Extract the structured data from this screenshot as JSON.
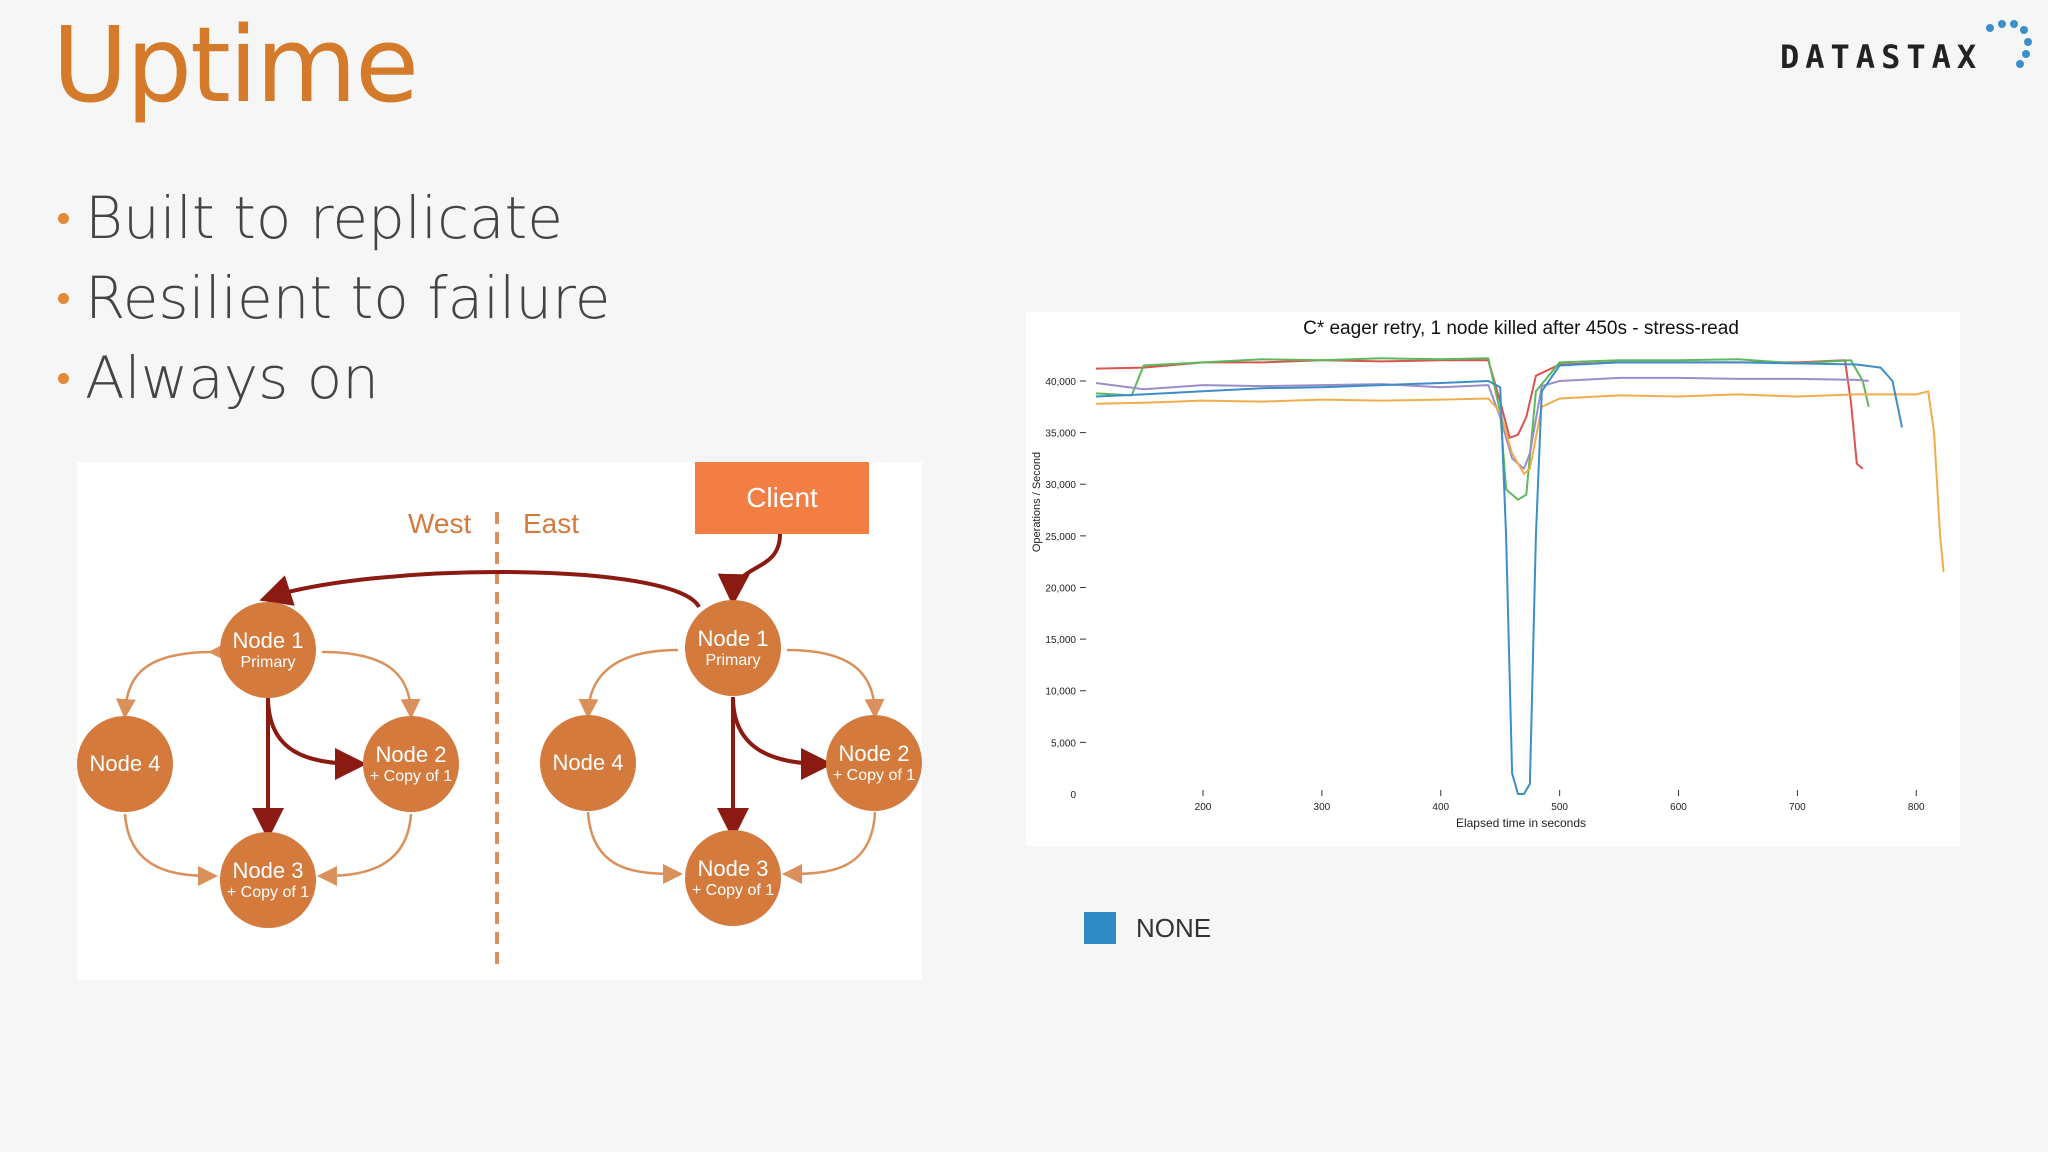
{
  "slide": {
    "title": "Uptime",
    "logo_text": "DATASTAX",
    "bullets": [
      "Built to replicate",
      "Resilient to failure",
      "Always on"
    ]
  },
  "diagram": {
    "client_label": "Client",
    "west_label": "West",
    "east_label": "East",
    "west_nodes": [
      {
        "name": "Node 1",
        "sub": "Primary"
      },
      {
        "name": "Node 2",
        "sub": "+ Copy of 1"
      },
      {
        "name": "Node 3",
        "sub": "+ Copy of 1"
      },
      {
        "name": "Node 4",
        "sub": ""
      }
    ],
    "east_nodes": [
      {
        "name": "Node 1",
        "sub": "Primary"
      },
      {
        "name": "Node 2",
        "sub": "+ Copy of 1"
      },
      {
        "name": "Node 3",
        "sub": "+ Copy of 1"
      },
      {
        "name": "Node 4",
        "sub": ""
      }
    ],
    "colors": {
      "node": "#d47a3d",
      "client": "#f27e43",
      "primary_arrow": "#8b1a12",
      "secondary_arrow": "#d9905a"
    }
  },
  "chart_data": {
    "type": "line",
    "title": "C* eager retry, 1 node killed after 450s - stress-read",
    "xlabel": "Elapsed time in seconds",
    "ylabel": "Operations / Second",
    "xlim": [
      110,
      825
    ],
    "ylim": [
      0,
      43000
    ],
    "xticks": [
      200,
      300,
      400,
      500,
      600,
      700,
      800
    ],
    "yticks": [
      0,
      5000,
      10000,
      15000,
      20000,
      25000,
      30000,
      35000,
      40000
    ],
    "ytick_labels": [
      "0",
      "5,000",
      "10,000",
      "15,000",
      "20,000",
      "25,000",
      "30,000",
      "35,000",
      "40,000"
    ],
    "series": [
      {
        "name": "NONE",
        "color": "#3d8ec8",
        "points": [
          [
            110,
            38500
          ],
          [
            150,
            38700
          ],
          [
            200,
            39000
          ],
          [
            250,
            39300
          ],
          [
            300,
            39400
          ],
          [
            350,
            39600
          ],
          [
            400,
            39800
          ],
          [
            440,
            40000
          ],
          [
            450,
            39400
          ],
          [
            455,
            25000
          ],
          [
            460,
            2000
          ],
          [
            465,
            0
          ],
          [
            470,
            0
          ],
          [
            475,
            1000
          ],
          [
            480,
            25000
          ],
          [
            485,
            39000
          ],
          [
            500,
            41500
          ],
          [
            550,
            41800
          ],
          [
            600,
            41800
          ],
          [
            650,
            41800
          ],
          [
            700,
            41700
          ],
          [
            750,
            41600
          ],
          [
            770,
            41300
          ],
          [
            780,
            40000
          ],
          [
            788,
            35500
          ]
        ]
      },
      {
        "name": "",
        "color": "#d9534f",
        "points": [
          [
            110,
            41200
          ],
          [
            150,
            41300
          ],
          [
            200,
            41800
          ],
          [
            250,
            41800
          ],
          [
            300,
            42000
          ],
          [
            350,
            41900
          ],
          [
            400,
            42000
          ],
          [
            440,
            42000
          ],
          [
            450,
            38000
          ],
          [
            458,
            34500
          ],
          [
            465,
            34800
          ],
          [
            472,
            36500
          ],
          [
            480,
            40500
          ],
          [
            500,
            41600
          ],
          [
            550,
            41800
          ],
          [
            600,
            41800
          ],
          [
            650,
            41800
          ],
          [
            700,
            41800
          ],
          [
            740,
            42000
          ],
          [
            745,
            38000
          ],
          [
            750,
            32000
          ],
          [
            755,
            31500
          ]
        ]
      },
      {
        "name": "",
        "color": "#5cb85c",
        "points": [
          [
            110,
            38800
          ],
          [
            140,
            38600
          ],
          [
            150,
            41500
          ],
          [
            200,
            41800
          ],
          [
            250,
            42100
          ],
          [
            300,
            42000
          ],
          [
            350,
            42200
          ],
          [
            400,
            42100
          ],
          [
            440,
            42200
          ],
          [
            450,
            37000
          ],
          [
            455,
            29500
          ],
          [
            465,
            28500
          ],
          [
            472,
            29000
          ],
          [
            480,
            39000
          ],
          [
            500,
            41800
          ],
          [
            550,
            42000
          ],
          [
            600,
            42000
          ],
          [
            650,
            42100
          ],
          [
            700,
            41700
          ],
          [
            745,
            42000
          ],
          [
            755,
            40000
          ],
          [
            760,
            37500
          ]
        ]
      },
      {
        "name": "",
        "color": "#9b8dc9",
        "points": [
          [
            110,
            39800
          ],
          [
            150,
            39200
          ],
          [
            200,
            39600
          ],
          [
            250,
            39500
          ],
          [
            300,
            39600
          ],
          [
            350,
            39700
          ],
          [
            400,
            39400
          ],
          [
            440,
            39600
          ],
          [
            450,
            36500
          ],
          [
            460,
            32500
          ],
          [
            470,
            31500
          ],
          [
            475,
            33000
          ],
          [
            485,
            39500
          ],
          [
            500,
            40000
          ],
          [
            550,
            40300
          ],
          [
            600,
            40300
          ],
          [
            650,
            40200
          ],
          [
            700,
            40200
          ],
          [
            750,
            40100
          ],
          [
            760,
            40000
          ]
        ]
      },
      {
        "name": "",
        "color": "#f0ad4e",
        "points": [
          [
            110,
            37800
          ],
          [
            150,
            37900
          ],
          [
            200,
            38100
          ],
          [
            250,
            38000
          ],
          [
            300,
            38200
          ],
          [
            350,
            38100
          ],
          [
            400,
            38200
          ],
          [
            440,
            38300
          ],
          [
            450,
            37000
          ],
          [
            460,
            33000
          ],
          [
            470,
            31000
          ],
          [
            475,
            31500
          ],
          [
            485,
            37500
          ],
          [
            500,
            38300
          ],
          [
            550,
            38600
          ],
          [
            600,
            38500
          ],
          [
            650,
            38700
          ],
          [
            700,
            38500
          ],
          [
            750,
            38700
          ],
          [
            800,
            38700
          ],
          [
            810,
            39000
          ],
          [
            815,
            35000
          ],
          [
            820,
            25000
          ],
          [
            823,
            21500
          ]
        ]
      }
    ]
  }
}
